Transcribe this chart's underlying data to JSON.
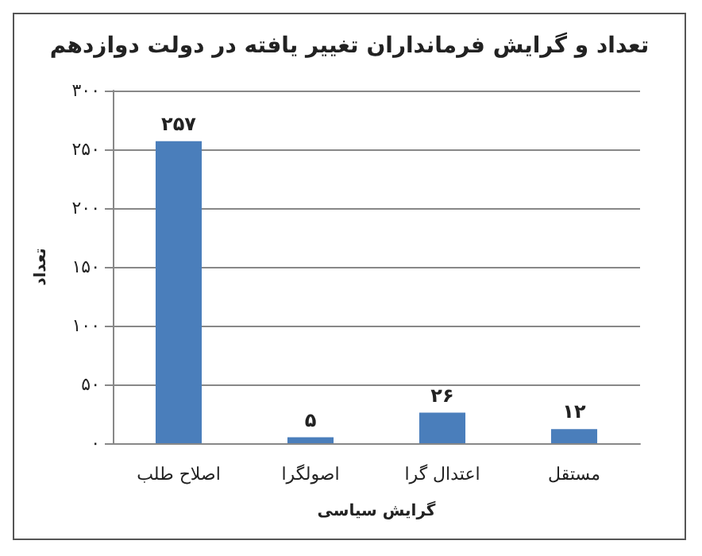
{
  "chart_data": {
    "type": "bar",
    "title": "تعداد و گرایش فرمانداران تغییر یافته در دولت دوازدهم",
    "xlabel": "گرایش سیاسی",
    "ylabel": "تعداد",
    "categories": [
      "اصلاح طلب",
      "اصولگرا",
      "اعتدال گرا",
      "مستقل"
    ],
    "values": [
      257,
      5,
      26,
      12
    ],
    "value_labels": [
      "۲۵۷",
      "۵",
      "۲۶",
      "۱۲"
    ],
    "color": "#4a7ebb",
    "ylim": [
      0,
      300
    ],
    "yticks": [
      {
        "value": 0,
        "label": "۰"
      },
      {
        "value": 50,
        "label": "۵۰"
      },
      {
        "value": 100,
        "label": "۱۰۰"
      },
      {
        "value": 150,
        "label": "۱۵۰"
      },
      {
        "value": 200,
        "label": "۲۰۰"
      },
      {
        "value": 250,
        "label": "۲۵۰"
      },
      {
        "value": 300,
        "label": "۳۰۰"
      }
    ],
    "grid": "y"
  }
}
